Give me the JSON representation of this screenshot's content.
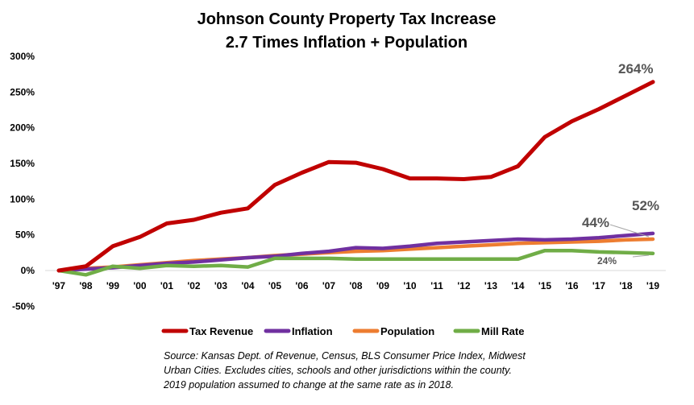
{
  "chart_data": {
    "type": "line",
    "title": [
      "Johnson County Property Tax Increase",
      "2.7 Times Inflation + Population"
    ],
    "categories": [
      "'97",
      "'98",
      "'99",
      "'00",
      "'01",
      "'02",
      "'03",
      "'04",
      "'05",
      "'06",
      "'07",
      "'08",
      "'09",
      "'10",
      "'11",
      "'12",
      "'13",
      "'14",
      "'15",
      "'16",
      "'17",
      "'18",
      "'19"
    ],
    "ylim": [
      -50,
      300
    ],
    "yticks": [
      "-50%",
      "0%",
      "50%",
      "100%",
      "150%",
      "200%",
      "250%",
      "300%"
    ],
    "grid": false,
    "legend_position": "bottom",
    "series": [
      {
        "name": "Tax Revenue",
        "color": "#C00000",
        "values": [
          0,
          6,
          34,
          47,
          66,
          71,
          81,
          87,
          120,
          137,
          152,
          151,
          142,
          129,
          129,
          128,
          131,
          146,
          187,
          209,
          226,
          245,
          264
        ]
      },
      {
        "name": "Inflation",
        "color": "#7030A0",
        "values": [
          0,
          2,
          4,
          7,
          10,
          12,
          15,
          18,
          20,
          24,
          27,
          32,
          31,
          34,
          38,
          40,
          42,
          44,
          43,
          44,
          46,
          49,
          52
        ]
      },
      {
        "name": "Population",
        "color": "#ED7D31",
        "values": [
          0,
          3,
          5,
          8,
          11,
          14,
          16,
          18,
          21,
          23,
          25,
          27,
          28,
          30,
          32,
          34,
          36,
          38,
          39,
          40,
          41,
          43,
          44
        ]
      },
      {
        "name": "Mill Rate",
        "color": "#70AD47",
        "values": [
          0,
          -6,
          6,
          3,
          7,
          6,
          7,
          5,
          17,
          17,
          17,
          16,
          16,
          16,
          16,
          16,
          16,
          16,
          28,
          28,
          26,
          25,
          24
        ]
      }
    ],
    "annotations": [
      {
        "text": "264%",
        "series": "Tax Revenue"
      },
      {
        "text": "52%",
        "series": "Inflation"
      },
      {
        "text": "44%",
        "series": "Population"
      },
      {
        "text": "24%",
        "series": "Mill Rate"
      }
    ]
  },
  "source_note": [
    "Source: Kansas Dept. of Revenue, Census, BLS Consumer Price Index, Midwest",
    "Urban Cities.  Excludes cities, schools and other jurisdictions within the county.",
    "2019 population assumed to change at the same rate as in 2018."
  ]
}
